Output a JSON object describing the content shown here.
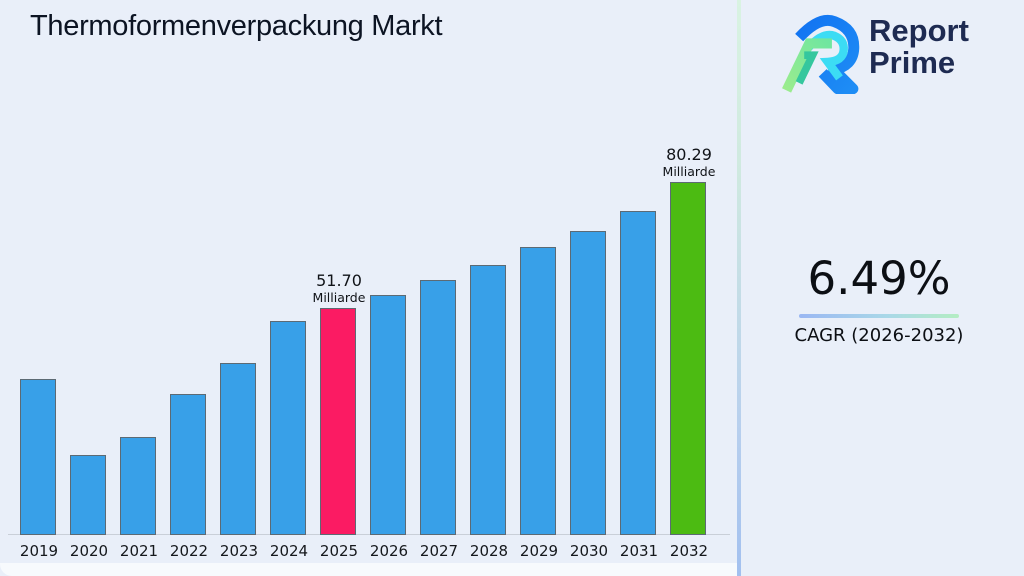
{
  "page": {
    "title": "Thermoformenverpackung Markt",
    "background_color": "#e9eff9"
  },
  "logo": {
    "line1": "Report",
    "line2": "Prime",
    "text_color": "#1e2b52",
    "mark_colors": {
      "blue": "#1273f2",
      "cyan": "#3cdcf4",
      "green": "#8cec8e",
      "teal": "#35c79e"
    }
  },
  "cagr_panel": {
    "value": "6.49%",
    "label": "CAGR (2026-2032)",
    "underline_gradient": [
      "#9ab7f3",
      "#b4edc3"
    ]
  },
  "chart_data": {
    "type": "bar",
    "title": "Thermoformenverpackung Markt",
    "xlabel": "",
    "ylabel": "",
    "unit_label": "Milliarde",
    "categories": [
      "2019",
      "2020",
      "2021",
      "2022",
      "2023",
      "2024",
      "2025",
      "2026",
      "2027",
      "2028",
      "2029",
      "2030",
      "2031",
      "2032"
    ],
    "values": [
      35.5,
      18.2,
      22.3,
      32.0,
      39.1,
      48.7,
      51.7,
      54.5,
      57.9,
      61.4,
      65.5,
      69.0,
      73.6,
      80.29
    ],
    "ylim": [
      0,
      90
    ],
    "grid": false,
    "legend": false,
    "y_axis_visible": false,
    "bar_color_default": "#38a0e8",
    "bar_border_color": "#5c6a74",
    "highlights": [
      {
        "category": "2025",
        "color": "#fb1b63",
        "label_value": "51.70",
        "label_unit": "Milliarde"
      },
      {
        "category": "2032",
        "color": "#4cbb12",
        "label_value": "80.29",
        "label_unit": "Milliarde"
      }
    ]
  }
}
